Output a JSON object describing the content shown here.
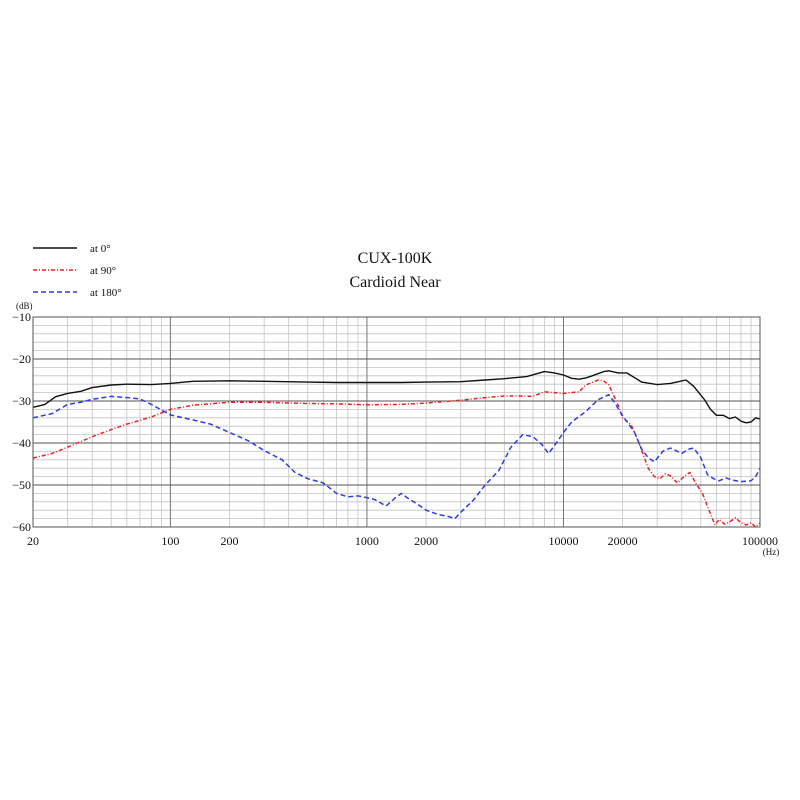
{
  "chart_data": {
    "type": "line",
    "title": "CUX-100K",
    "subtitle": "Cardioid Near",
    "ylabel": "(dB)",
    "xlabel": "(Hz)",
    "x_scale": "log",
    "xlim": [
      20,
      100000
    ],
    "ylim": [
      -60,
      -10
    ],
    "x_ticks": [
      20,
      100,
      200,
      1000,
      2000,
      10000,
      20000,
      100000
    ],
    "x_tick_labels": [
      "20",
      "100",
      "200",
      "1000",
      "2000",
      "10000",
      "20000",
      "100000"
    ],
    "y_ticks": [
      -10,
      -20,
      -30,
      -40,
      -50,
      -60
    ],
    "y_tick_labels": [
      "−10",
      "−20",
      "−30",
      "−40",
      "−50",
      "−60"
    ],
    "grid": true,
    "legend_position": "top-left",
    "series": [
      {
        "name": "at 0°",
        "color": "#111111",
        "dash": "solid",
        "points": [
          [
            20,
            -31.5
          ],
          [
            23,
            -30.8
          ],
          [
            26,
            -29.0
          ],
          [
            30,
            -28.2
          ],
          [
            35,
            -27.7
          ],
          [
            40,
            -26.8
          ],
          [
            50,
            -26.2
          ],
          [
            60,
            -26.0
          ],
          [
            80,
            -26.1
          ],
          [
            100,
            -25.8
          ],
          [
            130,
            -25.3
          ],
          [
            200,
            -25.2
          ],
          [
            300,
            -25.3
          ],
          [
            500,
            -25.5
          ],
          [
            700,
            -25.6
          ],
          [
            1000,
            -25.6
          ],
          [
            1500,
            -25.6
          ],
          [
            2000,
            -25.5
          ],
          [
            3000,
            -25.4
          ],
          [
            4000,
            -25.0
          ],
          [
            5000,
            -24.7
          ],
          [
            6500,
            -24.2
          ],
          [
            8000,
            -23.0
          ],
          [
            9000,
            -23.3
          ],
          [
            10000,
            -23.8
          ],
          [
            11000,
            -24.6
          ],
          [
            12000,
            -24.8
          ],
          [
            13000,
            -24.5
          ],
          [
            14000,
            -24.0
          ],
          [
            16000,
            -23.0
          ],
          [
            17000,
            -22.8
          ],
          [
            19000,
            -23.3
          ],
          [
            21000,
            -23.3
          ],
          [
            25000,
            -25.5
          ],
          [
            30000,
            -26.1
          ],
          [
            35000,
            -25.8
          ],
          [
            42000,
            -25.0
          ],
          [
            46000,
            -26.5
          ],
          [
            52000,
            -29.6
          ],
          [
            56000,
            -32.0
          ],
          [
            60000,
            -33.4
          ],
          [
            65000,
            -33.4
          ],
          [
            70000,
            -34.2
          ],
          [
            75000,
            -33.8
          ],
          [
            80000,
            -34.8
          ],
          [
            85000,
            -35.2
          ],
          [
            90000,
            -35.0
          ],
          [
            95000,
            -34.0
          ],
          [
            100000,
            -34.3
          ]
        ]
      },
      {
        "name": "at 90°",
        "color": "#e8231f",
        "dash": "dashdot",
        "points": [
          [
            20,
            -43.6
          ],
          [
            25,
            -42.5
          ],
          [
            30,
            -41.0
          ],
          [
            40,
            -38.5
          ],
          [
            50,
            -36.8
          ],
          [
            60,
            -35.5
          ],
          [
            80,
            -33.8
          ],
          [
            100,
            -32.0
          ],
          [
            130,
            -31.0
          ],
          [
            200,
            -30.3
          ],
          [
            300,
            -30.3
          ],
          [
            500,
            -30.6
          ],
          [
            700,
            -30.7
          ],
          [
            1000,
            -30.9
          ],
          [
            1500,
            -30.8
          ],
          [
            2000,
            -30.5
          ],
          [
            3000,
            -29.8
          ],
          [
            4000,
            -29.2
          ],
          [
            5000,
            -28.8
          ],
          [
            6000,
            -28.8
          ],
          [
            7000,
            -28.9
          ],
          [
            8000,
            -27.8
          ],
          [
            10000,
            -28.2
          ],
          [
            12000,
            -27.8
          ],
          [
            13000,
            -26.2
          ],
          [
            15000,
            -25.0
          ],
          [
            16000,
            -25.2
          ],
          [
            17000,
            -26.2
          ],
          [
            19000,
            -31.0
          ],
          [
            20000,
            -34.0
          ],
          [
            22000,
            -35.5
          ],
          [
            24000,
            -39.5
          ],
          [
            27000,
            -46.0
          ],
          [
            29000,
            -48.0
          ],
          [
            31000,
            -48.5
          ],
          [
            33000,
            -47.3
          ],
          [
            35000,
            -47.8
          ],
          [
            38000,
            -49.5
          ],
          [
            41000,
            -48.0
          ],
          [
            44000,
            -47.0
          ],
          [
            47000,
            -49.5
          ],
          [
            51000,
            -52.0
          ],
          [
            55000,
            -56.0
          ],
          [
            59000,
            -59.5
          ],
          [
            62000,
            -58.2
          ],
          [
            66000,
            -59.3
          ],
          [
            70000,
            -58.8
          ],
          [
            75000,
            -57.8
          ],
          [
            80000,
            -59.0
          ],
          [
            85000,
            -59.5
          ],
          [
            90000,
            -59.0
          ],
          [
            95000,
            -60.0
          ],
          [
            100000,
            -59.0
          ]
        ]
      },
      {
        "name": "at 180°",
        "color": "#2b3de6",
        "dash": "dash",
        "points": [
          [
            20,
            -34.0
          ],
          [
            25,
            -33.0
          ],
          [
            30,
            -30.8
          ],
          [
            35,
            -30.3
          ],
          [
            40,
            -29.6
          ],
          [
            50,
            -28.9
          ],
          [
            60,
            -29.2
          ],
          [
            70,
            -29.5
          ],
          [
            80,
            -30.8
          ],
          [
            100,
            -33.3
          ],
          [
            130,
            -34.5
          ],
          [
            160,
            -35.5
          ],
          [
            200,
            -37.5
          ],
          [
            250,
            -39.5
          ],
          [
            300,
            -41.8
          ],
          [
            370,
            -44.0
          ],
          [
            430,
            -47.0
          ],
          [
            500,
            -48.5
          ],
          [
            600,
            -49.5
          ],
          [
            700,
            -52.0
          ],
          [
            800,
            -52.8
          ],
          [
            900,
            -52.6
          ],
          [
            1000,
            -53.0
          ],
          [
            1100,
            -53.5
          ],
          [
            1250,
            -55.0
          ],
          [
            1400,
            -53.0
          ],
          [
            1500,
            -52.0
          ],
          [
            1600,
            -53.0
          ],
          [
            1800,
            -54.5
          ],
          [
            2000,
            -56.0
          ],
          [
            2300,
            -57.0
          ],
          [
            2600,
            -57.5
          ],
          [
            2800,
            -58.0
          ],
          [
            3000,
            -56.5
          ],
          [
            3500,
            -53.5
          ],
          [
            4000,
            -50.0
          ],
          [
            4700,
            -46.5
          ],
          [
            5400,
            -41.0
          ],
          [
            6200,
            -38.0
          ],
          [
            7000,
            -38.5
          ],
          [
            7800,
            -40.5
          ],
          [
            8400,
            -42.5
          ],
          [
            9200,
            -40.0
          ],
          [
            10000,
            -37.5
          ],
          [
            11000,
            -35.0
          ],
          [
            13000,
            -32.5
          ],
          [
            15000,
            -29.7
          ],
          [
            17000,
            -28.5
          ],
          [
            18000,
            -30.0
          ],
          [
            20000,
            -33.5
          ],
          [
            23000,
            -37.5
          ],
          [
            25000,
            -41.5
          ],
          [
            27000,
            -43.5
          ],
          [
            29000,
            -44.5
          ],
          [
            32000,
            -42.0
          ],
          [
            35000,
            -41.2
          ],
          [
            40000,
            -42.5
          ],
          [
            43000,
            -41.5
          ],
          [
            46000,
            -41.2
          ],
          [
            50000,
            -43.5
          ],
          [
            54000,
            -47.5
          ],
          [
            58000,
            -48.5
          ],
          [
            62000,
            -49.0
          ],
          [
            67000,
            -48.3
          ],
          [
            72000,
            -48.8
          ],
          [
            80000,
            -49.2
          ],
          [
            90000,
            -49.0
          ],
          [
            95000,
            -48.0
          ],
          [
            100000,
            -46.0
          ]
        ]
      }
    ]
  }
}
